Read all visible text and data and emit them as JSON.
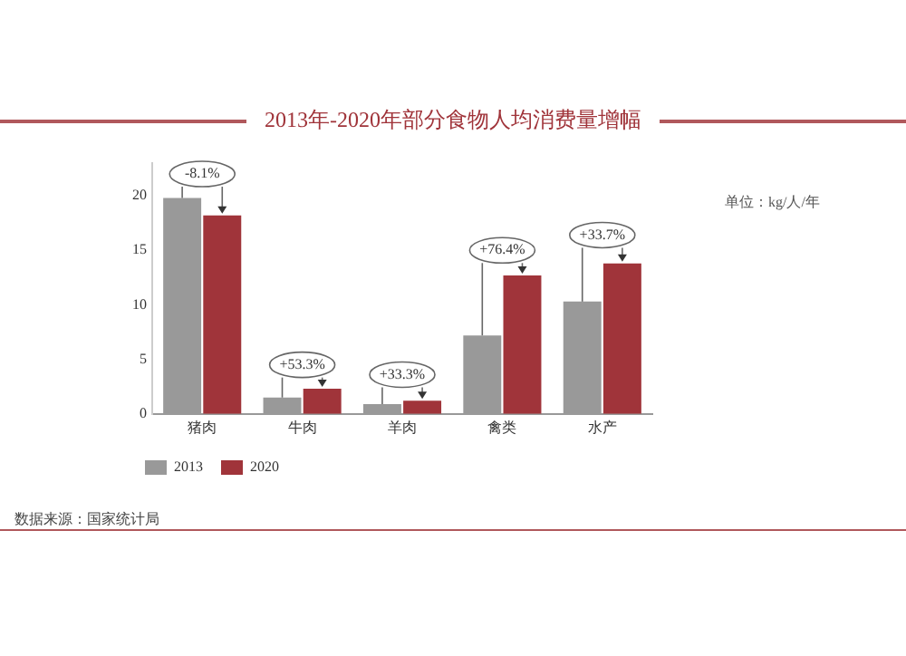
{
  "chart_data": {
    "type": "bar",
    "title": "2013年-2020年部分食物人均消费量增幅",
    "subtitle": "单位：kg/人/年",
    "categories": [
      "猪肉",
      "牛肉",
      "羊肉",
      "禽类",
      "水产"
    ],
    "series": [
      {
        "name": "2013",
        "color": "#999999",
        "values": [
          19.8,
          1.5,
          0.9,
          7.2,
          10.3
        ]
      },
      {
        "name": "2020",
        "color": "#a0343a",
        "values": [
          18.2,
          2.3,
          1.2,
          12.7,
          13.8
        ]
      }
    ],
    "ylim": [
      0,
      23
    ],
    "yticks": [
      0,
      5,
      10,
      15,
      20
    ],
    "grid": false,
    "legend": "bottom left",
    "annotations": [
      {
        "text": "-8.1%",
        "x": "猪肉",
        "y": 22
      },
      {
        "text": "+53.3%",
        "x": "牛肉",
        "y": 4.5
      },
      {
        "text": "+33.3%",
        "x": "羊肉",
        "y": 3.6
      },
      {
        "text": "+76.4%",
        "x": "禽类",
        "y": 15
      },
      {
        "text": "+33.7%",
        "x": "水产",
        "y": 16.4
      },
      "数据来源：国家统计局"
    ]
  }
}
